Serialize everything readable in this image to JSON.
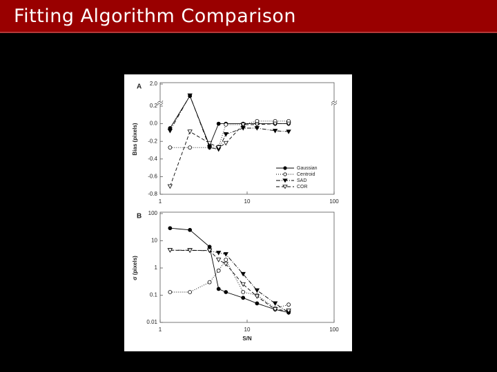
{
  "title": "Fitting Algorithm Comparison",
  "chart_data": [
    {
      "type": "line",
      "panel": "A",
      "ylabel": "Bias (pixels)",
      "x": [
        1.3,
        2.2,
        3.7,
        4.7,
        5.7,
        9,
        13,
        21,
        30
      ],
      "xlim": [
        1,
        100
      ],
      "xticks": [
        1,
        10,
        100
      ],
      "xlog": true,
      "ylim": [
        -0.8,
        2.0
      ],
      "ybreak": 0.2,
      "yticks": [
        {
          "value": 2.0,
          "label": "2.0"
        },
        0.2,
        {
          "value": 0,
          "label": "0.0"
        },
        -0.2,
        -0.4,
        -0.6,
        -0.8
      ],
      "legend": "lower right",
      "series": [
        {
          "name": "Gaussian",
          "color": "#000000",
          "marker": "circle",
          "filled": true,
          "dash": "none",
          "values": [
            -0.05,
            0.7,
            -0.25,
            0.0,
            0.0,
            0.0,
            0.0,
            0.0,
            0.0
          ]
        },
        {
          "name": "Centroid",
          "color": "#000000",
          "marker": "circle",
          "filled": false,
          "dash": "1,2",
          "values": [
            -0.27,
            -0.27,
            -0.27,
            -0.26,
            -0.01,
            -0.01,
            0.03,
            0.03,
            0.03
          ]
        },
        {
          "name": "SAD",
          "color": "#000000",
          "marker": "triangle",
          "filled": true,
          "dash": "6,2,1,2",
          "values": [
            -0.08,
            0.75,
            -0.27,
            -0.29,
            -0.12,
            -0.05,
            -0.05,
            -0.08,
            -0.09
          ]
        },
        {
          "name": "COR",
          "color": "#000000",
          "marker": "triangle",
          "filled": false,
          "dash": "5,3",
          "values": [
            -0.71,
            -0.09,
            -0.22,
            -0.27,
            -0.22,
            -0.01,
            -0.01,
            0.0,
            0.0
          ]
        }
      ]
    },
    {
      "type": "line",
      "panel": "B",
      "ylabel": "σ (pixels)",
      "xlabel": "S/N",
      "x": [
        1.3,
        2.2,
        3.7,
        4.7,
        5.7,
        9,
        13,
        21,
        30
      ],
      "xlim": [
        1,
        100
      ],
      "xticks": [
        1,
        10,
        100
      ],
      "xlog": true,
      "ylim": [
        0.01,
        100
      ],
      "yticks": [
        100,
        10,
        1,
        0.1,
        0.01
      ],
      "ylog": true,
      "series": [
        {
          "color": "#000000",
          "marker": "circle",
          "filled": true,
          "dash": "none",
          "values": [
            29,
            25,
            6,
            0.17,
            0.13,
            0.08,
            0.05,
            0.03,
            0.023
          ]
        },
        {
          "color": "#000000",
          "marker": "circle",
          "filled": false,
          "dash": "1,2",
          "values": [
            0.13,
            0.13,
            0.3,
            0.8,
            2,
            0.13,
            0.1,
            0.033,
            0.045
          ]
        },
        {
          "color": "#000000",
          "marker": "triangle",
          "filled": true,
          "dash": "6,2,1,2",
          "values": [
            4.5,
            4.5,
            4.3,
            3.6,
            3.2,
            0.6,
            0.15,
            0.05,
            0.023
          ]
        },
        {
          "color": "#000000",
          "marker": "triangle",
          "filled": false,
          "dash": "5,3",
          "values": [
            4.5,
            4.4,
            4.4,
            2,
            1.4,
            0.25,
            0.09,
            0.03,
            0.027
          ]
        }
      ]
    }
  ]
}
